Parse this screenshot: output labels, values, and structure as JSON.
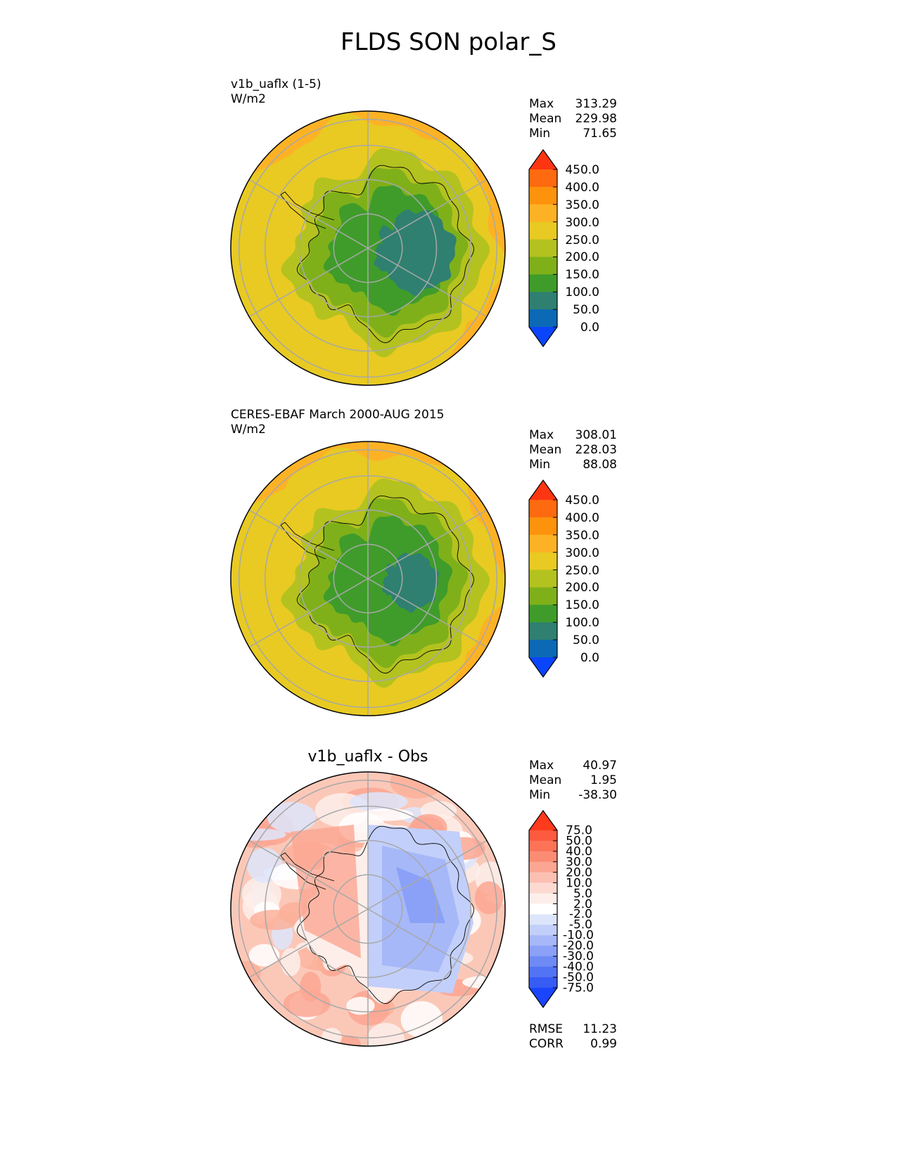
{
  "title": "FLDS SON polar_S",
  "panels": [
    {
      "label": "v1b_uaflx (1-5)",
      "units": "W/m2",
      "stats": [
        {
          "name": "Max",
          "value": "313.29"
        },
        {
          "name": "Mean",
          "value": "229.98"
        },
        {
          "name": "Min",
          "value": "71.65"
        }
      ],
      "colorbar": {
        "levels": [
          "450.0",
          "400.0",
          "350.0",
          "300.0",
          "250.0",
          "200.0",
          "150.0",
          "100.0",
          "50.0",
          "0.0"
        ],
        "colors": [
          "#fe3511",
          "#fd6a0f",
          "#fd930d",
          "#fdb225",
          "#e8ca23",
          "#b3c21f",
          "#7fb01a",
          "#3f9c2a",
          "#2f8070",
          "#0b69b6",
          "#0a45fc"
        ]
      }
    },
    {
      "label": "CERES-EBAF March 2000-AUG 2015",
      "units": "W/m2",
      "stats": [
        {
          "name": "Max",
          "value": "308.01"
        },
        {
          "name": "Mean",
          "value": "228.03"
        },
        {
          "name": "Min",
          "value": "88.08"
        }
      ],
      "colorbar": {
        "levels": [
          "450.0",
          "400.0",
          "350.0",
          "300.0",
          "250.0",
          "200.0",
          "150.0",
          "100.0",
          "50.0",
          "0.0"
        ],
        "colors": [
          "#fe3511",
          "#fd6a0f",
          "#fd930d",
          "#fdb225",
          "#e8ca23",
          "#b3c21f",
          "#7fb01a",
          "#3f9c2a",
          "#2f8070",
          "#0b69b6",
          "#0a45fc"
        ]
      }
    },
    {
      "title": "v1b_uaflx - Obs",
      "stats": [
        {
          "name": "Max",
          "value": "40.97"
        },
        {
          "name": "Mean",
          "value": "1.95"
        },
        {
          "name": "Min",
          "value": "-38.30"
        }
      ],
      "extra_stats": [
        {
          "name": "RMSE",
          "value": "11.23"
        },
        {
          "name": "CORR",
          "value": "0.99"
        }
      ],
      "colorbar": {
        "levels": [
          "75.0",
          "50.0",
          "40.0",
          "30.0",
          "20.0",
          "10.0",
          "5.0",
          "2.0",
          "-2.0",
          "-5.0",
          "-10.0",
          "-20.0",
          "-30.0",
          "-40.0",
          "-50.0",
          "-75.0"
        ],
        "colors": [
          "#fe3a1c",
          "#fd5a40",
          "#fc7358",
          "#fb8c74",
          "#fba692",
          "#fbc0b2",
          "#fcdad2",
          "#fdeeea",
          "#ffffff",
          "#dde5fb",
          "#c2cffa",
          "#a6b8f8",
          "#8aa1f7",
          "#6e8af5",
          "#5273f4",
          "#365cf3",
          "#1a45fc"
        ]
      }
    }
  ]
}
